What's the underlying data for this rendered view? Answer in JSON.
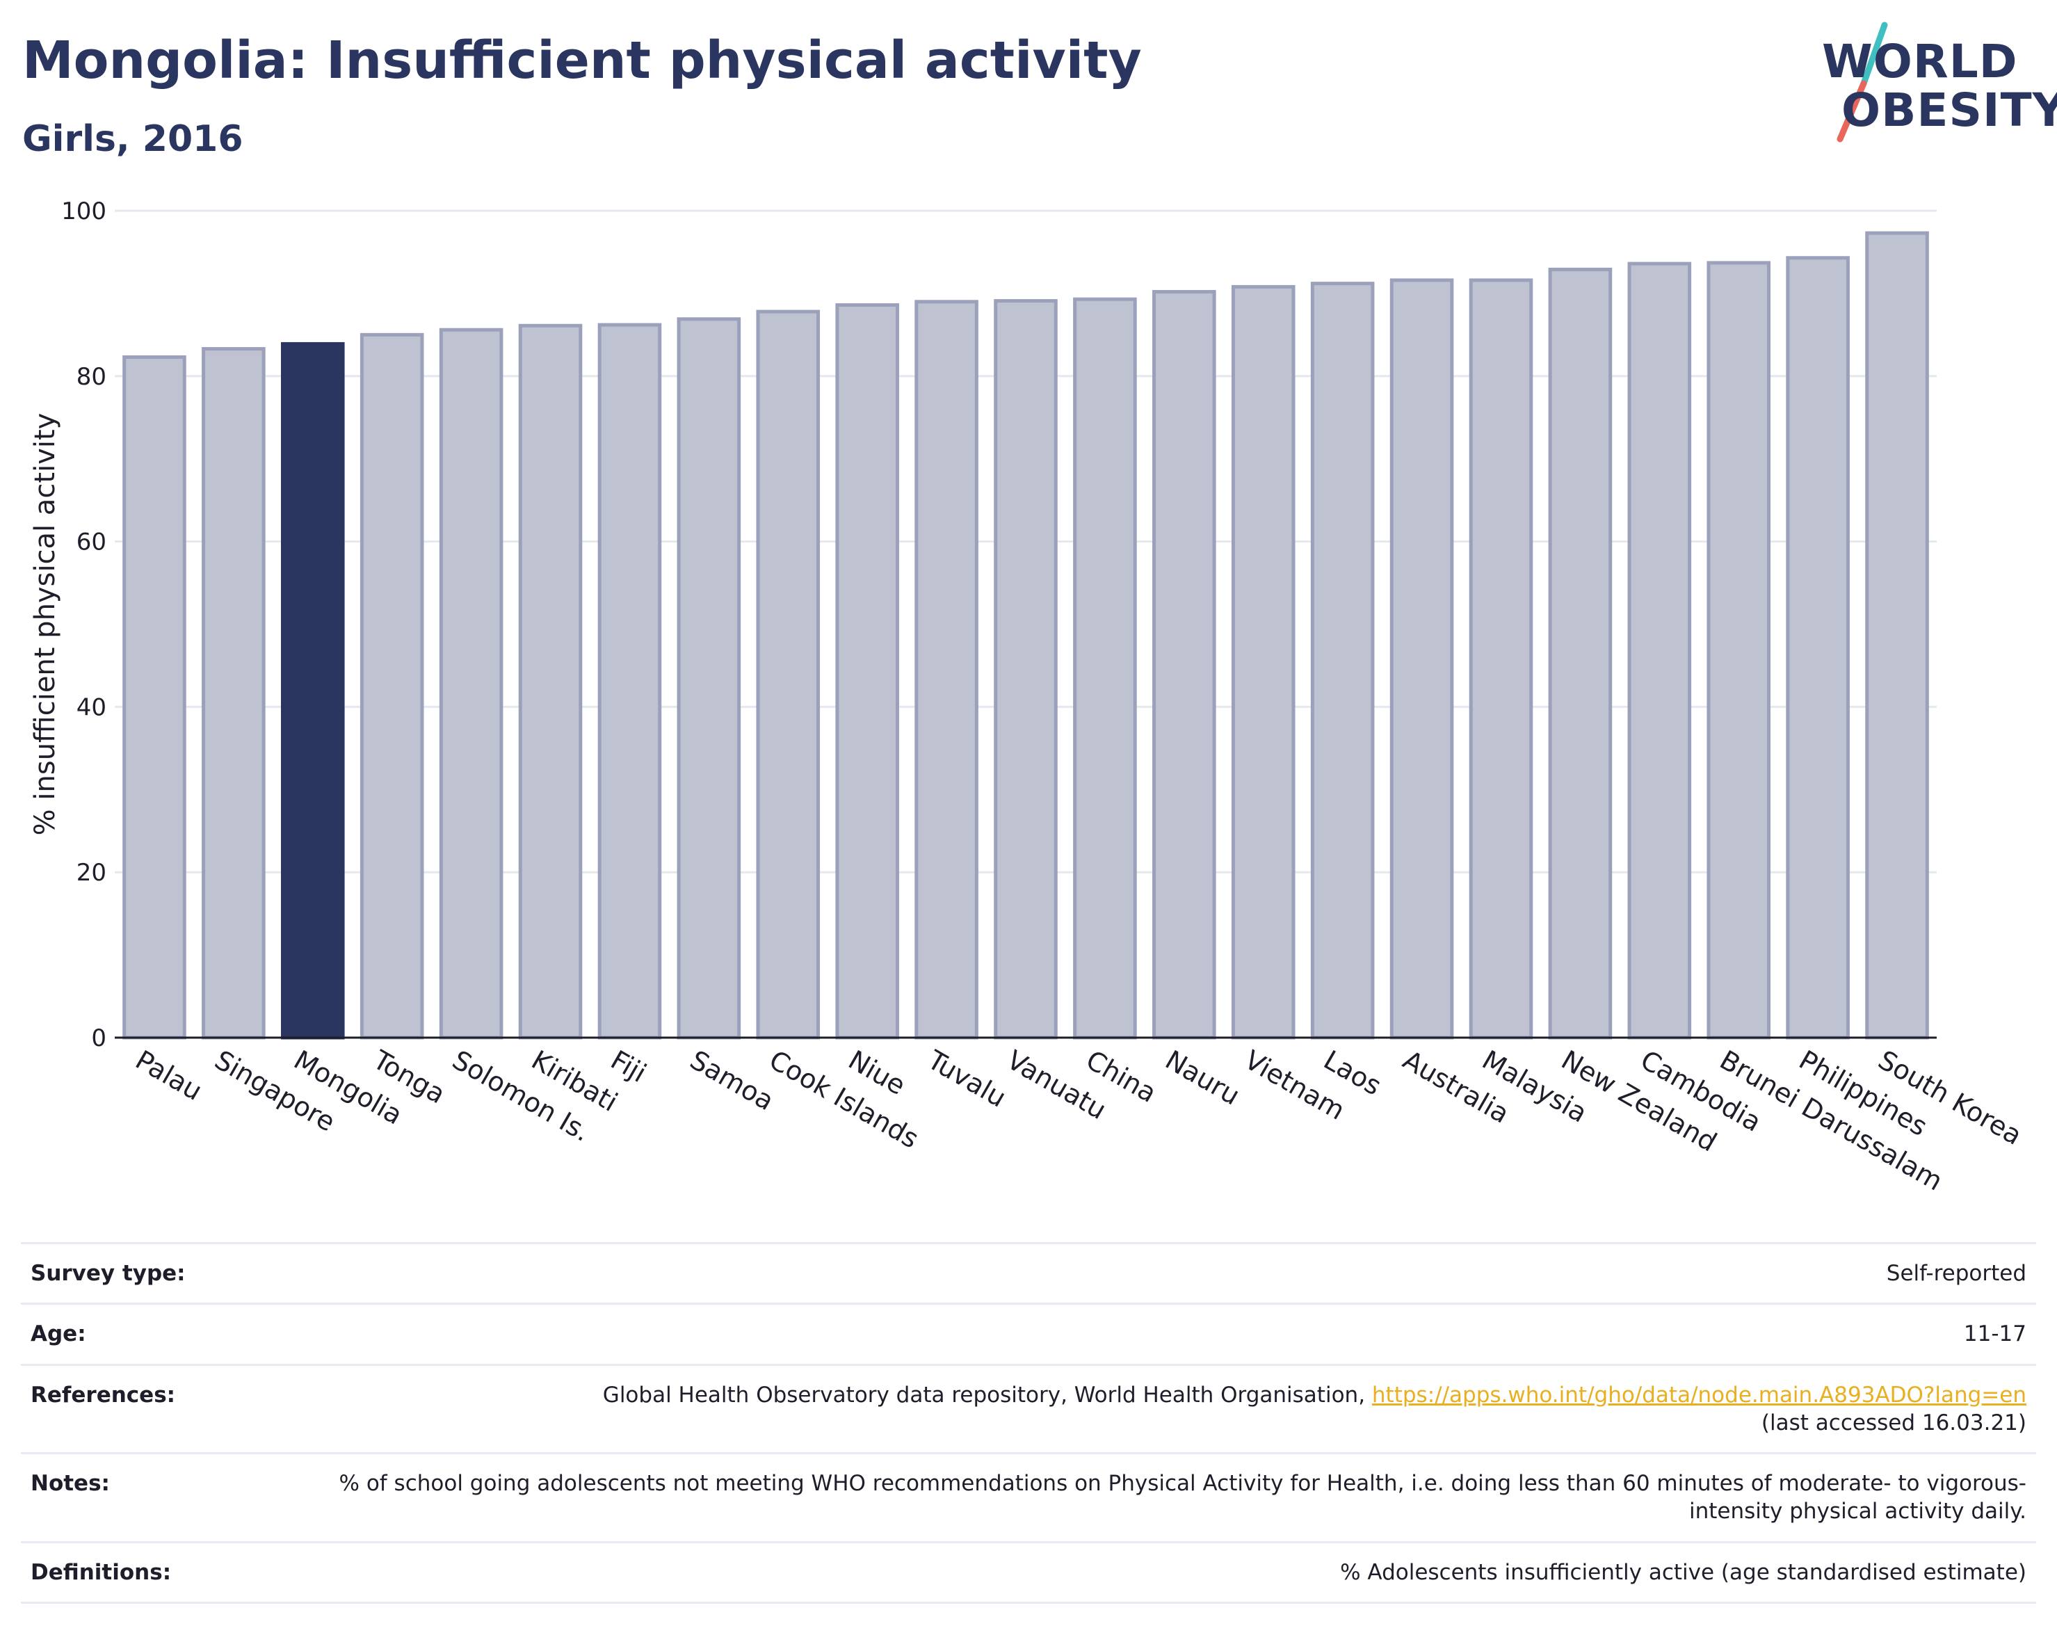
{
  "header": {
    "title": "Mongolia: Insufficient physical activity",
    "subtitle": "Girls, 2016"
  },
  "logo": {
    "line1": "WORLD",
    "line2": "OBESITY",
    "slash_colors": [
      "#3fbfbf",
      "#e8665a"
    ]
  },
  "colors": {
    "bar": "#bfc2d1",
    "bar_border": "#9ba1bb",
    "highlight": "#2b3660",
    "grid": "#e6e8f0",
    "axis": "#1e1e2a"
  },
  "chart_data": {
    "type": "bar",
    "title": "Mongolia: Insufficient physical activity",
    "subtitle": "Girls, 2016",
    "xlabel": "",
    "ylabel": "% insufficient physical activity",
    "ylim": [
      0,
      100
    ],
    "yticks": [
      0,
      20,
      40,
      60,
      80,
      100
    ],
    "grid": true,
    "highlight": "Mongolia",
    "categories": [
      "Palau",
      "Singapore",
      "Mongolia",
      "Tonga",
      "Solomon Is.",
      "Kiribati",
      "Fiji",
      "Samoa",
      "Cook Islands",
      "Niue",
      "Tuvalu",
      "Vanuatu",
      "China",
      "Nauru",
      "Vietnam",
      "Laos",
      "Australia",
      "Malaysia",
      "New Zealand",
      "Cambodia",
      "Brunei Darussalam",
      "Philippines",
      "South Korea"
    ],
    "values": [
      82.3,
      83.3,
      83.9,
      85.0,
      85.6,
      86.1,
      86.2,
      86.9,
      87.8,
      88.6,
      89.0,
      89.1,
      89.3,
      90.2,
      90.8,
      91.2,
      91.6,
      91.6,
      92.9,
      93.6,
      93.7,
      94.3,
      97.3
    ]
  },
  "info": [
    {
      "key": "Survey type:",
      "value": "Self-reported"
    },
    {
      "key": "Age:",
      "value": "11-17"
    },
    {
      "key": "References:",
      "value": "Global Health Observatory data repository, World Health Organisation,",
      "link": "https://apps.who.int/gho/data/node.main.A893ADO?lang=en",
      "value2": "(last accessed 16.03.21)"
    },
    {
      "key": "Notes:",
      "value": "% of school going adolescents not meeting WHO recommendations on Physical Activity for Health, i.e. doing less than 60 minutes of moderate- to vigorous-intensity physical activity daily."
    },
    {
      "key": "Definitions:",
      "value": "% Adolescents insufficiently active (age standardised estimate)"
    }
  ]
}
